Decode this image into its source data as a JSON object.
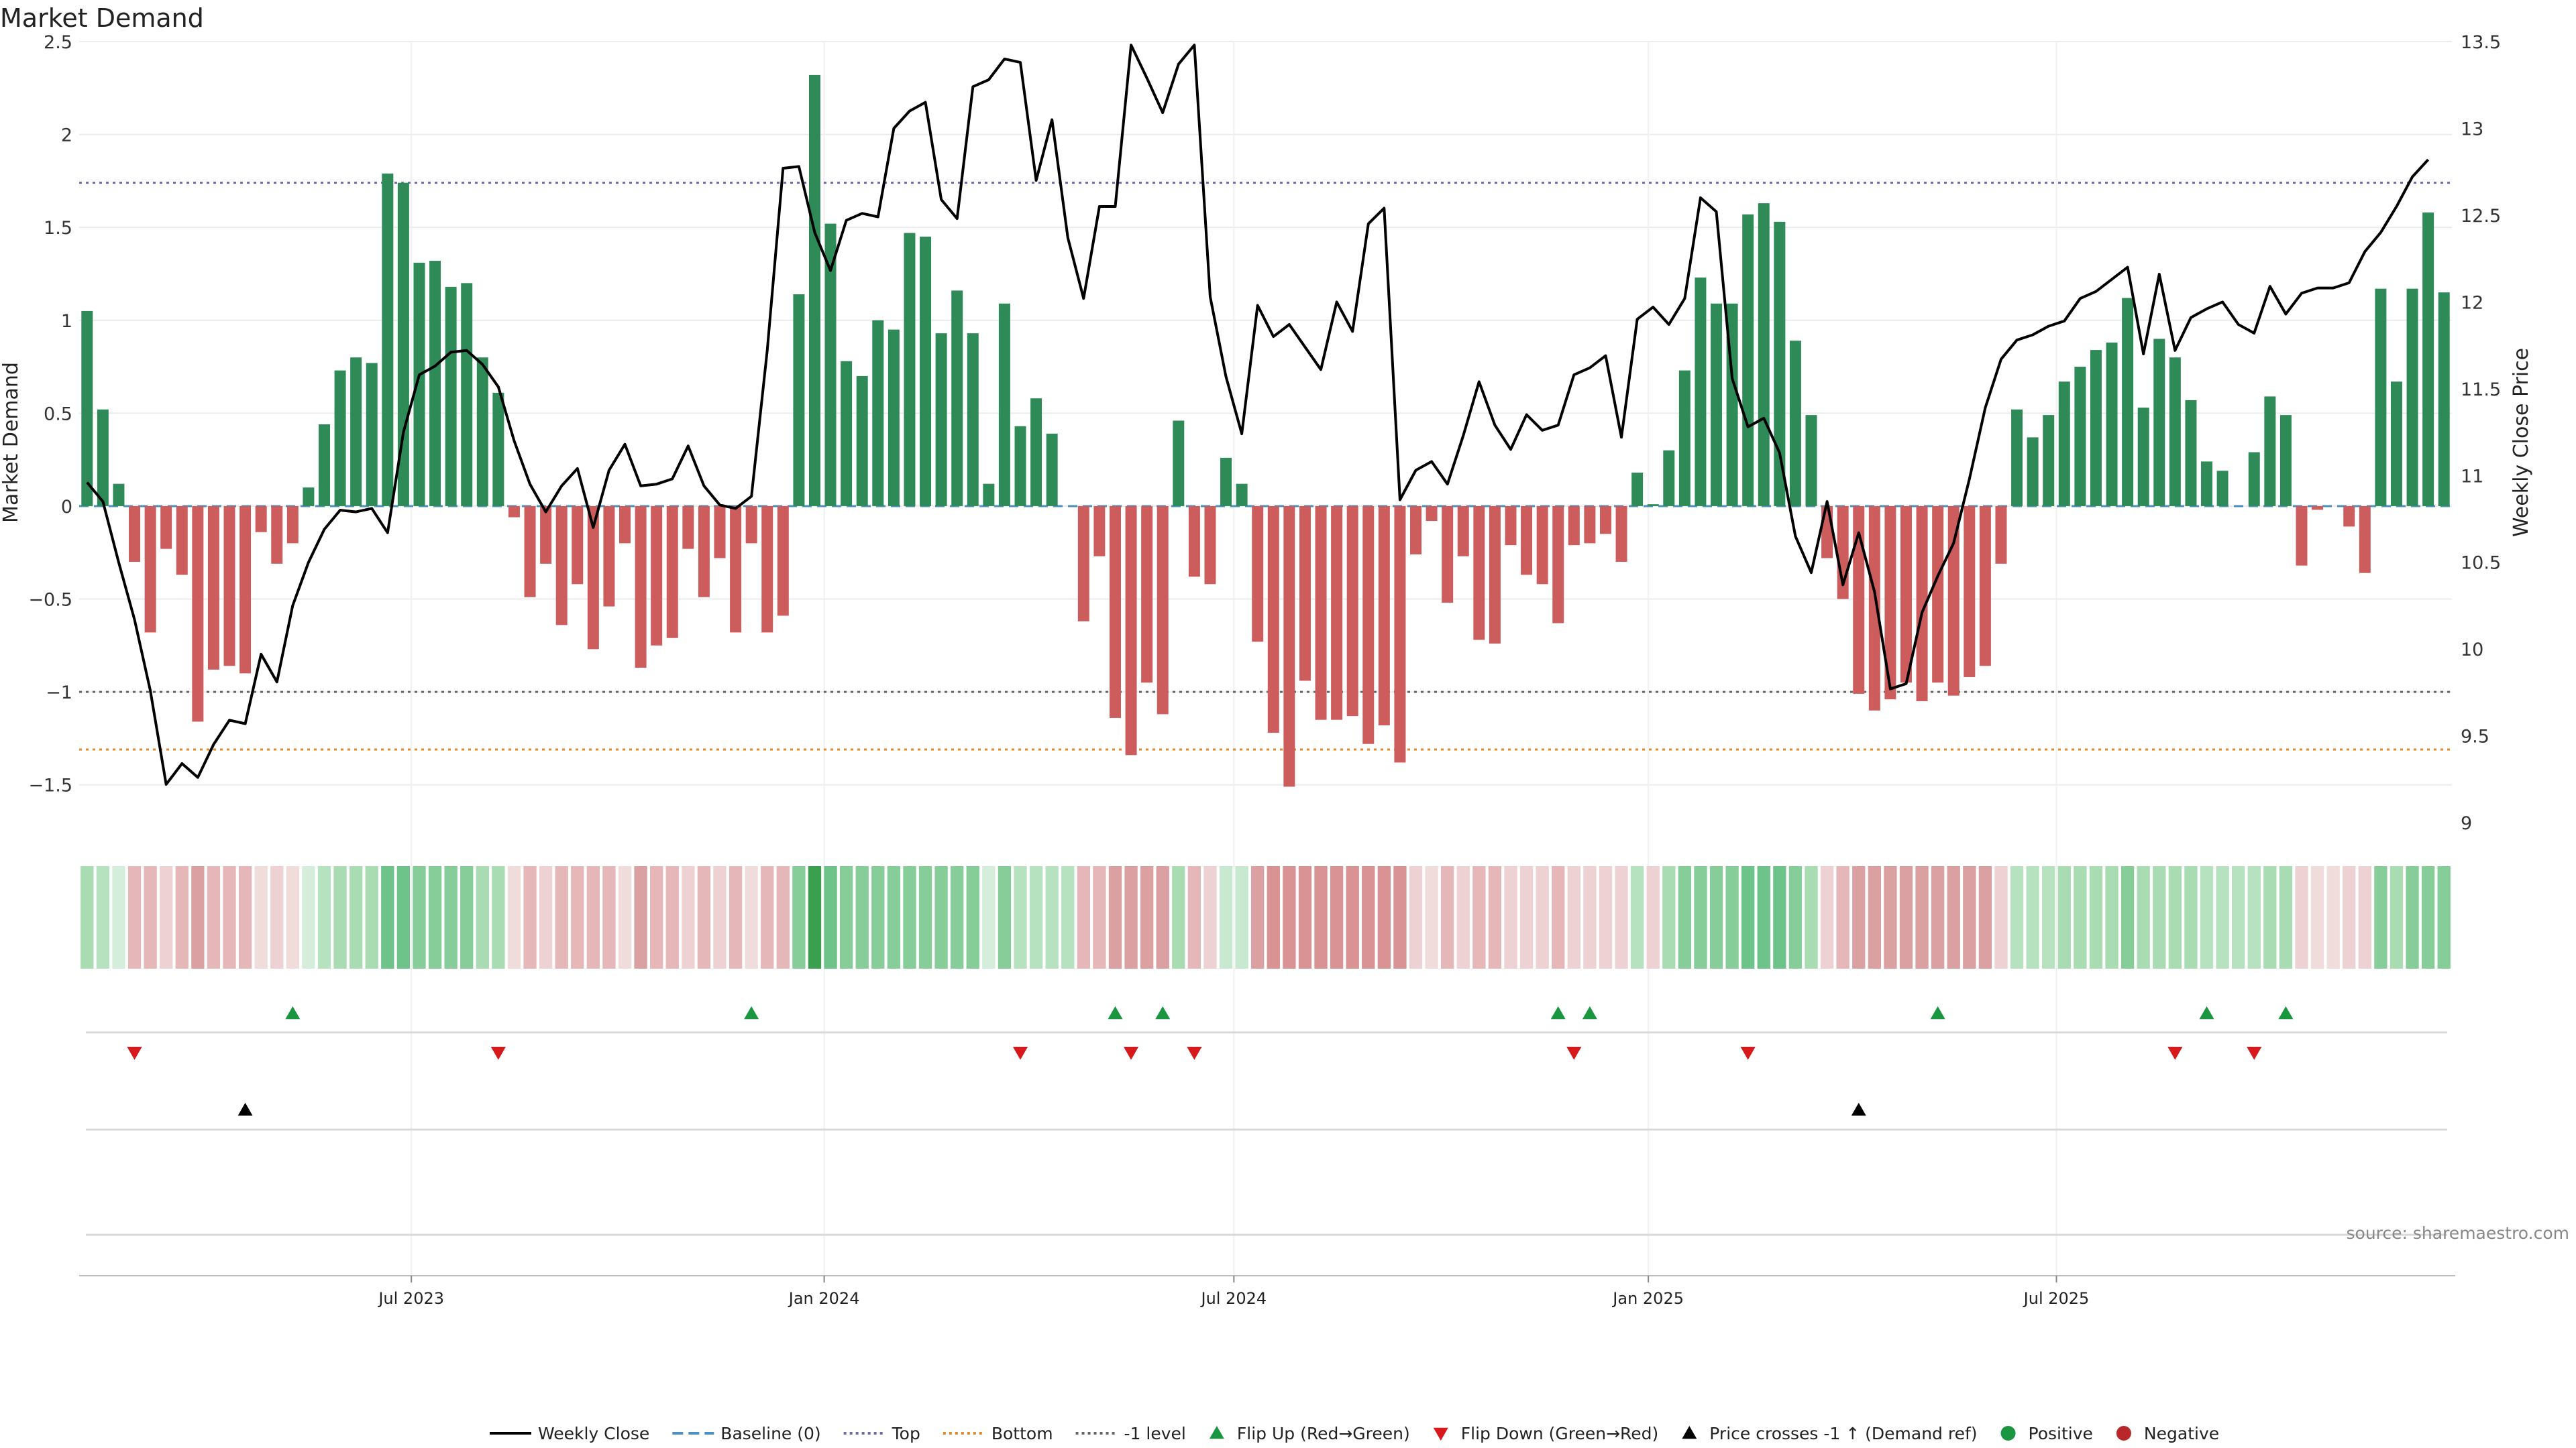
{
  "chart_data": {
    "type": "bar",
    "title": "Market Demand",
    "ylabel": "Market Demand",
    "y2label": "Weekly Close Price",
    "ylim": [
      -1.75,
      2.5
    ],
    "y2lim": [
      8.95,
      13.5
    ],
    "yticks": [
      2.5,
      2,
      1.5,
      1,
      0.5,
      0,
      -0.5,
      -1,
      -1.5
    ],
    "ytick_labels": [
      "2.5",
      "2",
      "1.5",
      "1",
      "0.5",
      "0",
      "−0.5",
      "−1",
      "−1.5"
    ],
    "y2ticks": [
      13.5,
      13,
      12.5,
      12,
      11.5,
      11,
      10.5,
      10,
      9.5,
      9
    ],
    "y2tick_labels": [
      "13.5",
      "13",
      "12.5",
      "12",
      "11.5",
      "11",
      "10.5",
      "10",
      "9.5",
      "9"
    ],
    "xticks": [
      {
        "index": 20.5,
        "label": "Jul 2023"
      },
      {
        "index": 46.6,
        "label": "Jan 2024"
      },
      {
        "index": 72.5,
        "label": "Jul 2024"
      },
      {
        "index": 98.7,
        "label": "Jan 2025"
      },
      {
        "index": 124.5,
        "label": "Jul 2025"
      }
    ],
    "levels": {
      "top": 1.74,
      "bottom": -1.31,
      "minus_one": -1.0,
      "baseline": 0
    },
    "demand": [
      1.05,
      0.52,
      0.12,
      -0.3,
      -0.68,
      -0.23,
      -0.37,
      -1.16,
      -0.88,
      -0.86,
      -0.9,
      -0.14,
      -0.31,
      -0.2,
      0.1,
      0.44,
      0.73,
      0.8,
      0.77,
      1.79,
      1.74,
      1.31,
      1.32,
      1.18,
      1.2,
      0.8,
      0.61,
      -0.06,
      -0.49,
      -0.31,
      -0.64,
      -0.42,
      -0.77,
      -0.54,
      -0.2,
      -0.87,
      -0.75,
      -0.71,
      -0.23,
      -0.49,
      -0.28,
      -0.68,
      -0.2,
      -0.68,
      -0.59,
      1.14,
      2.32,
      1.52,
      0.78,
      0.7,
      1.0,
      0.95,
      1.47,
      1.45,
      0.93,
      1.16,
      0.93,
      0.12,
      1.09,
      0.43,
      0.58,
      0.39,
      0,
      -0.62,
      -0.27,
      -1.14,
      -1.34,
      -0.95,
      -1.12,
      0.46,
      -0.38,
      -0.42,
      0.26,
      0.12,
      -0.73,
      -1.22,
      -1.51,
      -0.94,
      -1.15,
      -1.15,
      -1.13,
      -1.28,
      -1.18,
      -1.38,
      -0.26,
      -0.08,
      -0.52,
      -0.27,
      -0.72,
      -0.74,
      -0.21,
      -0.37,
      -0.42,
      -0.63,
      -0.21,
      -0.2,
      -0.15,
      -0.3,
      0.18,
      0.01,
      0.3,
      0.73,
      1.23,
      1.09,
      1.09,
      1.57,
      1.63,
      1.53,
      0.89,
      0.49,
      -0.28,
      -0.5,
      -1.01,
      -1.1,
      -1.04,
      -0.95,
      -1.05,
      -0.95,
      -1.02,
      -0.92,
      -0.86,
      -0.31,
      0.52,
      0.37,
      0.49,
      0.67,
      0.75,
      0.84,
      0.88,
      1.12,
      0.53,
      0.9,
      0.8,
      0.57,
      0.24,
      0.19,
      0,
      0.29,
      0.59,
      0.49,
      -0.32,
      -0.02,
      0,
      -0.11,
      -0.36,
      1.17,
      0.67,
      1.17,
      1.58,
      1.15
    ],
    "weekly_close": [
      10.96,
      10.85,
      10.5,
      10.17,
      9.76,
      9.22,
      9.34,
      9.26,
      9.45,
      9.59,
      9.57,
      9.97,
      9.81,
      10.25,
      10.5,
      10.69,
      10.8,
      10.79,
      10.81,
      10.67,
      11.25,
      11.58,
      11.63,
      11.71,
      11.72,
      11.64,
      11.51,
      11.2,
      10.95,
      10.79,
      10.94,
      11.04,
      10.7,
      11.03,
      11.18,
      10.94,
      10.95,
      10.98,
      11.17,
      10.94,
      10.83,
      10.81,
      10.88,
      11.72,
      12.77,
      12.78,
      12.4,
      12.18,
      12.47,
      12.51,
      12.49,
      13.0,
      13.1,
      13.15,
      12.59,
      12.48,
      13.24,
      13.28,
      13.4,
      13.38,
      12.7,
      13.05,
      12.37,
      12.02,
      12.55,
      12.55,
      13.48,
      13.29,
      13.09,
      13.37,
      13.48,
      12.03,
      11.57,
      11.24,
      11.98,
      11.8,
      11.87,
      11.74,
      11.61,
      12.0,
      11.83,
      12.45,
      12.54,
      10.86,
      11.03,
      11.08,
      10.95,
      11.23,
      11.54,
      11.29,
      11.15,
      11.35,
      11.26,
      11.29,
      11.58,
      11.62,
      11.69,
      11.22,
      11.9,
      11.97,
      11.87,
      12.02,
      12.6,
      12.52,
      11.56,
      11.28,
      11.33,
      11.13,
      10.65,
      10.44,
      10.85,
      10.37,
      10.67,
      10.33,
      9.77,
      9.8,
      10.21,
      10.42,
      10.61,
      10.98,
      11.39,
      11.67,
      11.78,
      11.81,
      11.86,
      11.89,
      12.02,
      12.06,
      12.13,
      12.2,
      11.7,
      12.16,
      11.72,
      11.91,
      11.96,
      12.0,
      11.87,
      11.82,
      12.09,
      11.93,
      12.05,
      12.08,
      12.08,
      12.11,
      12.29,
      12.4,
      12.55,
      12.72,
      12.82
    ],
    "strip_colors": [
      "#a9dcb3",
      "#b7e2c0",
      "#d5eedb",
      "#e6b7b8",
      "#e6b7b8",
      "#eed2d3",
      "#e6b7b8",
      "#dba0a2",
      "#e6b7b8",
      "#e6b7b8",
      "#e6b7b8",
      "#f1dcdc",
      "#eed2d3",
      "#f1dcdc",
      "#d5eedb",
      "#b7e2c0",
      "#a9dcb3",
      "#a9dcb3",
      "#a9dcb3",
      "#6ec38b",
      "#6ec38b",
      "#86cd9a",
      "#86cd9a",
      "#86cd9a",
      "#86cd9a",
      "#a9dcb3",
      "#a9dcb3",
      "#f1dcdc",
      "#e6b7b8",
      "#eed2d3",
      "#e6b7b8",
      "#e6b7b8",
      "#e6b7b8",
      "#e6b7b8",
      "#f1dcdc",
      "#dba0a2",
      "#e6b7b8",
      "#e6b7b8",
      "#eed2d3",
      "#e6b7b8",
      "#eed2d3",
      "#e6b7b8",
      "#f1dcdc",
      "#e6b7b8",
      "#e6b7b8",
      "#86cd9a",
      "#3a9f4e",
      "#6ec38b",
      "#86cd9a",
      "#86cd9a",
      "#86cd9a",
      "#86cd9a",
      "#86cd9a",
      "#86cd9a",
      "#86cd9a",
      "#86cd9a",
      "#86cd9a",
      "#d5eedb",
      "#86cd9a",
      "#b7e2c0",
      "#b7e2c0",
      "#b7e2c0",
      "#b7e2c0",
      "#e6b7b8",
      "#e6b7b8",
      "#dba0a2",
      "#dba0a2",
      "#dba0a2",
      "#dba0a2",
      "#a9dcb3",
      "#e6b7b8",
      "#eed2d3",
      "#c8e9cf",
      "#c8e9cf",
      "#dba0a2",
      "#d99394",
      "#d99394",
      "#d99394",
      "#d99394",
      "#d99394",
      "#d99394",
      "#d99394",
      "#d99394",
      "#d99394",
      "#eed2d3",
      "#f1dcdc",
      "#e6b7b8",
      "#eed2d3",
      "#e6b7b8",
      "#e6b7b8",
      "#eed2d3",
      "#eed2d3",
      "#eed2d3",
      "#e6b7b8",
      "#eed2d3",
      "#eed2d3",
      "#eed2d3",
      "#eed2d3",
      "#b7e2c0",
      "#eed2d3",
      "#a9dcb3",
      "#86cd9a",
      "#86cd9a",
      "#86cd9a",
      "#86cd9a",
      "#6ec38b",
      "#6ec38b",
      "#6ec38b",
      "#86cd9a",
      "#a9dcb3",
      "#eed2d3",
      "#e6b7b8",
      "#dba0a2",
      "#dba0a2",
      "#dba0a2",
      "#dba0a2",
      "#dba0a2",
      "#dba0a2",
      "#dba0a2",
      "#dba0a2",
      "#dba0a2",
      "#eed2d3",
      "#b7e2c0",
      "#b7e2c0",
      "#b7e2c0",
      "#a9dcb3",
      "#a9dcb3",
      "#a9dcb3",
      "#a9dcb3",
      "#86cd9a",
      "#a9dcb3",
      "#a9dcb3",
      "#a9dcb3",
      "#a9dcb3",
      "#b7e2c0",
      "#b7e2c0",
      "#b7e2c0",
      "#b7e2c0",
      "#a9dcb3",
      "#a9dcb3",
      "#eed2d3",
      "#f1dcdc",
      "#f1dcdc",
      "#eed2d3",
      "#eed2d3",
      "#86cd9a",
      "#a9dcb3",
      "#86cd9a",
      "#86cd9a",
      "#86cd9a"
    ],
    "flip_up_indices": [
      13,
      42,
      65,
      68,
      93,
      95,
      117,
      134,
      139
    ],
    "flip_down_indices": [
      3,
      26,
      59,
      66,
      70,
      94,
      105,
      132,
      137
    ],
    "price_cross_indices": [
      10,
      112
    ],
    "legend": [
      {
        "label": "Weekly Close",
        "kind": "line-solid",
        "color": "#000000"
      },
      {
        "label": "Baseline (0)",
        "kind": "line-dashed",
        "color": "#4a90c0"
      },
      {
        "label": "Top",
        "kind": "line-dotted",
        "color": "#6b6ba8"
      },
      {
        "label": "Bottom",
        "kind": "line-dotted",
        "color": "#e08a30"
      },
      {
        "label": "-1 level",
        "kind": "line-dotted",
        "color": "#666666"
      },
      {
        "label": "Flip Up (Red→Green)",
        "kind": "triangle-up",
        "color": "#1a9641"
      },
      {
        "label": "Flip Down (Green→Red)",
        "kind": "triangle-down",
        "color": "#d7191c"
      },
      {
        "label": "Price crosses -1 ↑ (Demand ref)",
        "kind": "triangle-up",
        "color": "#000000"
      },
      {
        "label": "Positive",
        "kind": "dot",
        "color": "#1a9641"
      },
      {
        "label": "Negative",
        "kind": "dot",
        "color": "#b8282a"
      }
    ],
    "colors": {
      "positive_bar": "#2e8b57",
      "negative_bar": "#cd5c5c",
      "line": "#000000"
    },
    "source_note": "source: sharemaestro.com"
  }
}
